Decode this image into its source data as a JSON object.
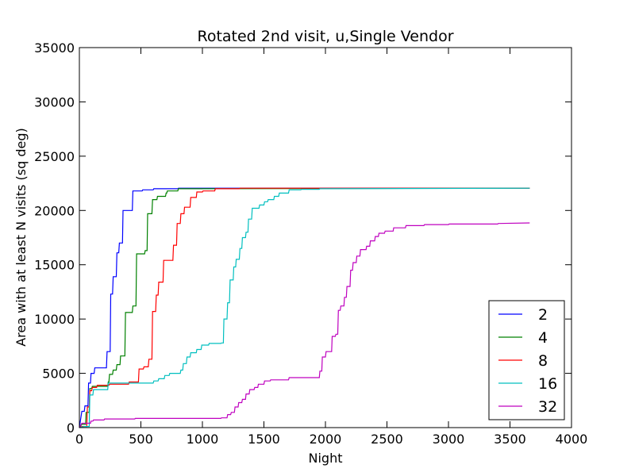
{
  "chart_data": {
    "type": "line",
    "title": "Rotated 2nd visit, u,Single Vendor",
    "xlabel": "Night",
    "ylabel": "Area with at least N visits (sq deg)",
    "xlim": [
      0,
      4000
    ],
    "ylim": [
      0,
      35000
    ],
    "xticks": [
      "0",
      "500",
      "1000",
      "1500",
      "2000",
      "2500",
      "3000",
      "3500",
      "4000"
    ],
    "yticks": [
      "0",
      "5000",
      "10000",
      "15000",
      "20000",
      "25000",
      "30000",
      "35000"
    ],
    "grid": false,
    "legend_position": "lower-right",
    "series": [
      {
        "name": "2",
        "color": "#0000ff",
        "points": [
          [
            0,
            0
          ],
          [
            20,
            1500
          ],
          [
            40,
            1500
          ],
          [
            45,
            2000
          ],
          [
            70,
            2000
          ],
          [
            75,
            4100
          ],
          [
            90,
            4100
          ],
          [
            95,
            5000
          ],
          [
            120,
            5000
          ],
          [
            125,
            5500
          ],
          [
            220,
            5500
          ],
          [
            225,
            7000
          ],
          [
            250,
            7000
          ],
          [
            255,
            12300
          ],
          [
            270,
            12300
          ],
          [
            275,
            13900
          ],
          [
            300,
            13900
          ],
          [
            305,
            16100
          ],
          [
            320,
            16100
          ],
          [
            325,
            17000
          ],
          [
            350,
            17000
          ],
          [
            355,
            20000
          ],
          [
            430,
            20000
          ],
          [
            435,
            21800
          ],
          [
            510,
            21800
          ],
          [
            515,
            21900
          ],
          [
            600,
            21900
          ],
          [
            605,
            22000
          ],
          [
            800,
            22000
          ],
          [
            805,
            22050
          ],
          [
            3660,
            22050
          ]
        ]
      },
      {
        "name": "4",
        "color": "#008000",
        "points": [
          [
            0,
            0
          ],
          [
            20,
            300
          ],
          [
            50,
            300
          ],
          [
            55,
            1400
          ],
          [
            80,
            1400
          ],
          [
            85,
            3600
          ],
          [
            100,
            3600
          ],
          [
            105,
            3800
          ],
          [
            230,
            3800
          ],
          [
            235,
            4200
          ],
          [
            240,
            4200
          ],
          [
            245,
            4900
          ],
          [
            270,
            4900
          ],
          [
            275,
            5300
          ],
          [
            300,
            5300
          ],
          [
            305,
            5800
          ],
          [
            330,
            5800
          ],
          [
            335,
            6600
          ],
          [
            370,
            6600
          ],
          [
            375,
            10600
          ],
          [
            430,
            10600
          ],
          [
            435,
            11200
          ],
          [
            460,
            11200
          ],
          [
            465,
            16000
          ],
          [
            530,
            16000
          ],
          [
            535,
            16300
          ],
          [
            550,
            16300
          ],
          [
            555,
            19700
          ],
          [
            590,
            19700
          ],
          [
            595,
            21000
          ],
          [
            630,
            21000
          ],
          [
            635,
            21300
          ],
          [
            700,
            21300
          ],
          [
            705,
            21600
          ],
          [
            710,
            21600
          ],
          [
            715,
            21800
          ],
          [
            800,
            21800
          ],
          [
            805,
            22000
          ],
          [
            3660,
            22050
          ]
        ]
      },
      {
        "name": "8",
        "color": "#ff0000",
        "points": [
          [
            0,
            0
          ],
          [
            20,
            100
          ],
          [
            60,
            100
          ],
          [
            65,
            1900
          ],
          [
            80,
            1900
          ],
          [
            85,
            3400
          ],
          [
            100,
            3400
          ],
          [
            105,
            3700
          ],
          [
            140,
            3700
          ],
          [
            145,
            3900
          ],
          [
            240,
            3900
          ],
          [
            245,
            4000
          ],
          [
            400,
            4000
          ],
          [
            405,
            4200
          ],
          [
            480,
            4200
          ],
          [
            485,
            5400
          ],
          [
            520,
            5400
          ],
          [
            525,
            5600
          ],
          [
            560,
            5600
          ],
          [
            565,
            6300
          ],
          [
            590,
            6300
          ],
          [
            595,
            10700
          ],
          [
            620,
            10700
          ],
          [
            625,
            12200
          ],
          [
            640,
            12200
          ],
          [
            645,
            13400
          ],
          [
            680,
            13400
          ],
          [
            685,
            15400
          ],
          [
            760,
            15400
          ],
          [
            765,
            16800
          ],
          [
            790,
            16800
          ],
          [
            795,
            18800
          ],
          [
            820,
            18800
          ],
          [
            825,
            19700
          ],
          [
            850,
            19700
          ],
          [
            855,
            20300
          ],
          [
            900,
            20300
          ],
          [
            905,
            21200
          ],
          [
            950,
            21200
          ],
          [
            955,
            21700
          ],
          [
            1000,
            21700
          ],
          [
            1005,
            21800
          ],
          [
            1100,
            21800
          ],
          [
            1105,
            22000
          ],
          [
            1300,
            22000
          ],
          [
            1305,
            22050
          ],
          [
            3660,
            22050
          ]
        ]
      },
      {
        "name": "16",
        "color": "#00bfbf",
        "points": [
          [
            0,
            0
          ],
          [
            40,
            100
          ],
          [
            80,
            100
          ],
          [
            85,
            3000
          ],
          [
            110,
            3000
          ],
          [
            115,
            3500
          ],
          [
            230,
            3500
          ],
          [
            235,
            4100
          ],
          [
            600,
            4100
          ],
          [
            605,
            4300
          ],
          [
            640,
            4300
          ],
          [
            645,
            4500
          ],
          [
            690,
            4500
          ],
          [
            695,
            4800
          ],
          [
            730,
            4800
          ],
          [
            735,
            5000
          ],
          [
            820,
            5000
          ],
          [
            825,
            5300
          ],
          [
            840,
            5300
          ],
          [
            845,
            5900
          ],
          [
            870,
            5900
          ],
          [
            875,
            6500
          ],
          [
            900,
            6500
          ],
          [
            905,
            6900
          ],
          [
            950,
            6900
          ],
          [
            955,
            7200
          ],
          [
            990,
            7200
          ],
          [
            995,
            7600
          ],
          [
            1050,
            7600
          ],
          [
            1055,
            7750
          ],
          [
            1150,
            7750
          ],
          [
            1155,
            7800
          ],
          [
            1170,
            7800
          ],
          [
            1175,
            10000
          ],
          [
            1200,
            10000
          ],
          [
            1205,
            11500
          ],
          [
            1220,
            11500
          ],
          [
            1225,
            13600
          ],
          [
            1250,
            13600
          ],
          [
            1255,
            14800
          ],
          [
            1270,
            14800
          ],
          [
            1275,
            15500
          ],
          [
            1300,
            15500
          ],
          [
            1305,
            16500
          ],
          [
            1320,
            16500
          ],
          [
            1325,
            17500
          ],
          [
            1350,
            17500
          ],
          [
            1355,
            18000
          ],
          [
            1370,
            18000
          ],
          [
            1375,
            19200
          ],
          [
            1400,
            19200
          ],
          [
            1405,
            20200
          ],
          [
            1460,
            20200
          ],
          [
            1465,
            20500
          ],
          [
            1500,
            20500
          ],
          [
            1505,
            20800
          ],
          [
            1530,
            20800
          ],
          [
            1535,
            21000
          ],
          [
            1580,
            21000
          ],
          [
            1585,
            21300
          ],
          [
            1620,
            21300
          ],
          [
            1625,
            21600
          ],
          [
            1700,
            21600
          ],
          [
            1705,
            21900
          ],
          [
            1800,
            21900
          ],
          [
            1805,
            21950
          ],
          [
            1950,
            21950
          ],
          [
            1955,
            22000
          ],
          [
            3660,
            22050
          ]
        ]
      },
      {
        "name": "32",
        "color": "#bf00bf",
        "points": [
          [
            0,
            0
          ],
          [
            20,
            400
          ],
          [
            90,
            400
          ],
          [
            95,
            600
          ],
          [
            110,
            600
          ],
          [
            115,
            700
          ],
          [
            200,
            700
          ],
          [
            205,
            800
          ],
          [
            450,
            800
          ],
          [
            455,
            850
          ],
          [
            1150,
            850
          ],
          [
            1155,
            900
          ],
          [
            1200,
            900
          ],
          [
            1205,
            1200
          ],
          [
            1230,
            1200
          ],
          [
            1235,
            1400
          ],
          [
            1260,
            1400
          ],
          [
            1265,
            1900
          ],
          [
            1290,
            1900
          ],
          [
            1295,
            2300
          ],
          [
            1320,
            2300
          ],
          [
            1325,
            2600
          ],
          [
            1350,
            2600
          ],
          [
            1355,
            3100
          ],
          [
            1380,
            3100
          ],
          [
            1385,
            3500
          ],
          [
            1420,
            3500
          ],
          [
            1425,
            3700
          ],
          [
            1450,
            3700
          ],
          [
            1455,
            4000
          ],
          [
            1500,
            4000
          ],
          [
            1505,
            4300
          ],
          [
            1550,
            4300
          ],
          [
            1555,
            4400
          ],
          [
            1700,
            4400
          ],
          [
            1705,
            4600
          ],
          [
            1950,
            4600
          ],
          [
            1955,
            5200
          ],
          [
            1970,
            5200
          ],
          [
            1975,
            6500
          ],
          [
            2000,
            6500
          ],
          [
            2005,
            7000
          ],
          [
            2050,
            7000
          ],
          [
            2055,
            8400
          ],
          [
            2080,
            8400
          ],
          [
            2085,
            8600
          ],
          [
            2100,
            8600
          ],
          [
            2105,
            10800
          ],
          [
            2120,
            10800
          ],
          [
            2125,
            11200
          ],
          [
            2150,
            11200
          ],
          [
            2155,
            12000
          ],
          [
            2170,
            12000
          ],
          [
            2175,
            13000
          ],
          [
            2200,
            13000
          ],
          [
            2205,
            14500
          ],
          [
            2220,
            14500
          ],
          [
            2225,
            15200
          ],
          [
            2250,
            15200
          ],
          [
            2255,
            15800
          ],
          [
            2280,
            15800
          ],
          [
            2285,
            16400
          ],
          [
            2330,
            16400
          ],
          [
            2335,
            16700
          ],
          [
            2360,
            16700
          ],
          [
            2365,
            17200
          ],
          [
            2400,
            17200
          ],
          [
            2405,
            17600
          ],
          [
            2430,
            17600
          ],
          [
            2435,
            17900
          ],
          [
            2480,
            17900
          ],
          [
            2485,
            18100
          ],
          [
            2550,
            18100
          ],
          [
            2555,
            18400
          ],
          [
            2650,
            18400
          ],
          [
            2655,
            18600
          ],
          [
            2800,
            18600
          ],
          [
            2805,
            18700
          ],
          [
            3000,
            18700
          ],
          [
            3005,
            18750
          ],
          [
            3400,
            18750
          ],
          [
            3405,
            18800
          ],
          [
            3660,
            18850
          ]
        ]
      }
    ]
  }
}
